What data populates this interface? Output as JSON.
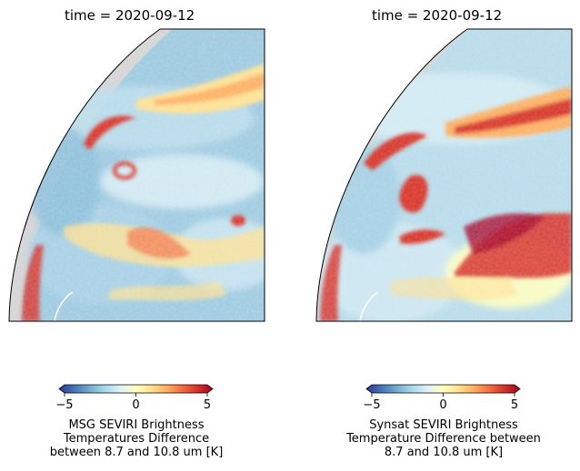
{
  "chart_data": [
    {
      "type": "heatmap",
      "title": "time = 2020-09-12",
      "colorbar": {
        "label": "MSG SEVIRI Brightness\nTemperatures Difference\nbetween  8.7 and 10.8 um [K]",
        "ticks": [
          "−5",
          "0",
          "5"
        ],
        "range": [
          -5,
          5
        ],
        "colormap": [
          "#313695",
          "#4575b4",
          "#74add1",
          "#abd9e9",
          "#e0f3f8",
          "#ffffbf",
          "#fee090",
          "#fdae61",
          "#f46d43",
          "#d73027",
          "#a50026"
        ]
      },
      "background": "#d3d3d3"
    },
    {
      "type": "heatmap",
      "title": "time = 2020-09-12",
      "colorbar": {
        "label": "Synsat SEVIRI Brightness\nTemperature Difference between\n8.7 and 10.8 um [K]",
        "ticks": [
          "−5",
          "0",
          "5"
        ],
        "range": [
          -5,
          5
        ],
        "colormap": [
          "#313695",
          "#4575b4",
          "#74add1",
          "#abd9e9",
          "#e0f3f8",
          "#ffffbf",
          "#fee090",
          "#fdae61",
          "#f46d43",
          "#d73027",
          "#a50026"
        ]
      },
      "background": "#d3d3d3"
    }
  ]
}
